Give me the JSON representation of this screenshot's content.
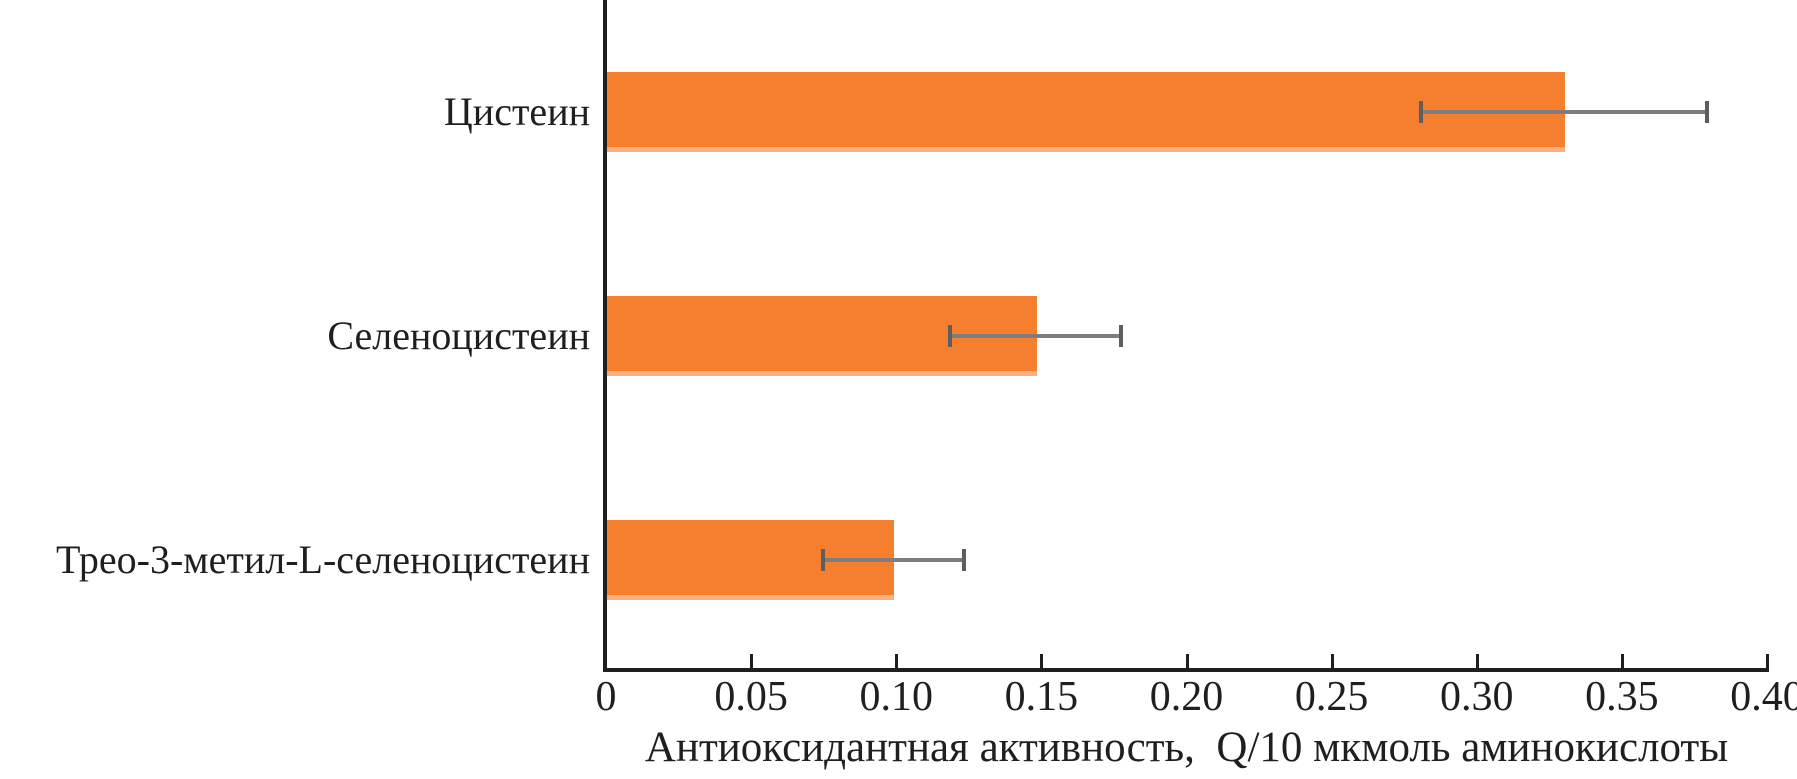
{
  "chart_data": {
    "type": "bar",
    "orientation": "horizontal",
    "title": "",
    "xlabel": "Антиоксидантная активность,  Q/10 мкмоль аминокислоты",
    "ylabel": "",
    "categories": [
      "Цистеин",
      "Селеноцистеин",
      "Трео-3-метил-L-селеноцистеин"
    ],
    "values": [
      0.33,
      0.148,
      0.099
    ],
    "error_bars": [
      0.05,
      0.03,
      0.025
    ],
    "xlim": [
      0,
      0.4
    ],
    "xticks": [
      0,
      0.05,
      0.1,
      0.15,
      0.2,
      0.25,
      0.3,
      0.35,
      0.4
    ],
    "xtick_labels": [
      "0",
      "0.05",
      "0.10",
      "0.15",
      "0.20",
      "0.25",
      "0.30",
      "0.35",
      "0.40"
    ],
    "grid": false,
    "legend": false,
    "bar_color": "#F57F2F",
    "bar_bottom_edge_color": "#F8B07E",
    "error_bar_line_color": "#7d7d7d",
    "error_bar_cap_color": "#5e5e5e",
    "axis_color": "#1f1f1f",
    "text_color": "#1f1f1f",
    "background_color": "#ffffff"
  }
}
